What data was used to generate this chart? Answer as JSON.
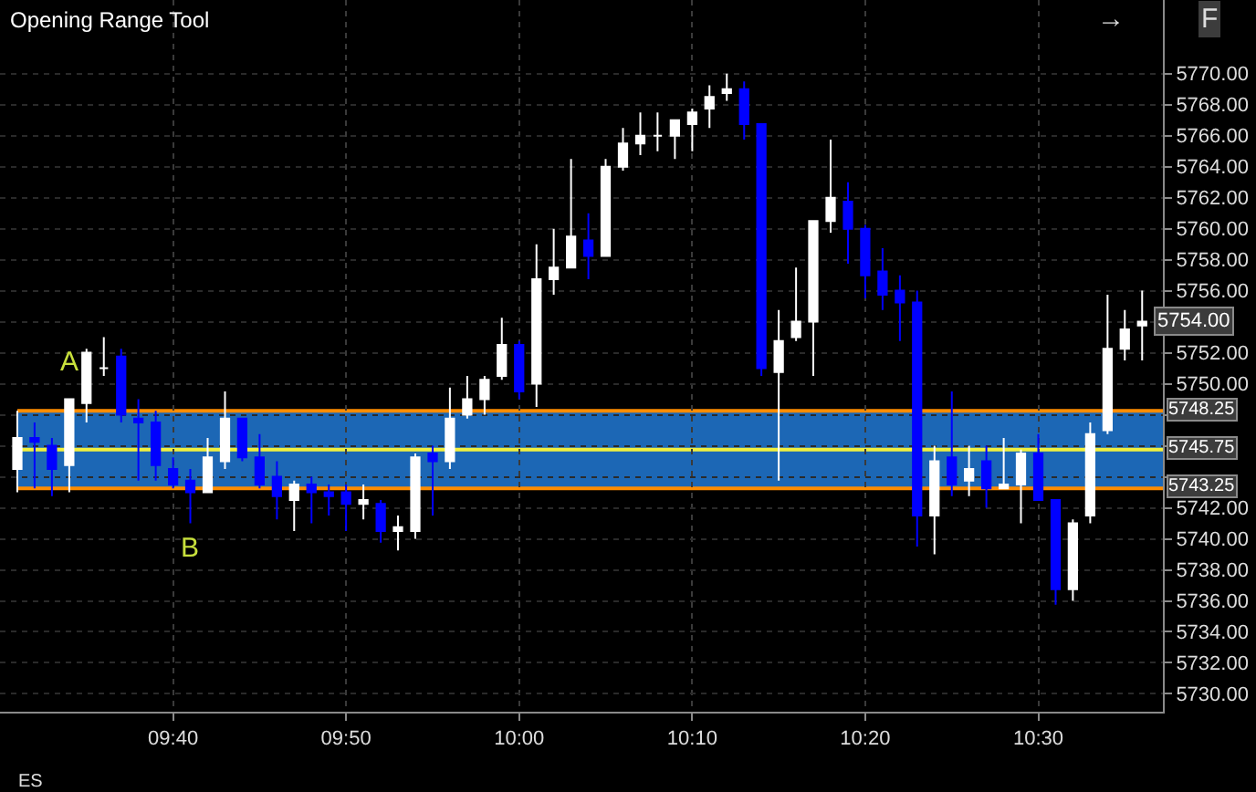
{
  "chart_data": {
    "type": "candlestick",
    "title": "Opening Range Tool",
    "x": [
      9.5167,
      9.5333,
      9.55,
      9.5667,
      9.5833,
      9.6,
      9.6167,
      9.6333,
      9.65,
      9.6667,
      9.6833,
      9.7,
      9.7167,
      9.7333,
      9.75,
      9.7667,
      9.7833,
      9.8,
      9.8167,
      9.8333,
      9.85,
      9.8667,
      9.8833,
      9.9,
      9.9167,
      9.9333,
      9.95,
      9.9667,
      9.9833,
      10,
      10.0167,
      10.0333,
      10.05,
      10.0667,
      10.0833,
      10.1,
      10.1167,
      10.1333,
      10.15,
      10.1667,
      10.1833,
      10.2,
      10.2167,
      10.2333,
      10.25,
      10.2667,
      10.2833,
      10.3,
      10.3167,
      10.3333,
      10.35,
      10.3667,
      10.3833,
      10.4,
      10.4167,
      10.4333,
      10.45,
      10.4667,
      10.4833,
      10.5,
      10.5167,
      10.5333,
      10.55,
      10.5667,
      10.5833,
      10.6
    ],
    "ohlc": [
      [
        5744.5,
        5748.25,
        5743.0,
        5746.5
      ],
      [
        5746.5,
        5747.5,
        5743.25,
        5746.25
      ],
      [
        5746.0,
        5746.5,
        5742.75,
        5744.5
      ],
      [
        5744.75,
        5749.0,
        5743.0,
        5749.0
      ],
      [
        5748.75,
        5752.25,
        5747.5,
        5752.0
      ],
      [
        5751.0,
        5753.0,
        5750.5,
        5751.0
      ],
      [
        5751.75,
        5752.25,
        5747.5,
        5748.0
      ],
      [
        5747.75,
        5749.0,
        5743.75,
        5747.5
      ],
      [
        5747.5,
        5748.25,
        5743.75,
        5744.75
      ],
      [
        5744.5,
        5745.25,
        5743.25,
        5743.5
      ],
      [
        5743.75,
        5744.5,
        5741.0,
        5743.0
      ],
      [
        5743.0,
        5746.5,
        5743.0,
        5745.25
      ],
      [
        5745.0,
        5749.5,
        5744.5,
        5747.75
      ],
      [
        5747.75,
        5747.75,
        5745.0,
        5745.25
      ],
      [
        5745.25,
        5746.75,
        5743.25,
        5743.5
      ],
      [
        5744.0,
        5745.0,
        5741.25,
        5742.75
      ],
      [
        5742.5,
        5743.75,
        5740.5,
        5743.5
      ],
      [
        5743.5,
        5744.0,
        5741.0,
        5743.0
      ],
      [
        5743.0,
        5743.5,
        5741.5,
        5742.75
      ],
      [
        5743.0,
        5743.5,
        5740.5,
        5742.25
      ],
      [
        5742.25,
        5743.5,
        5741.25,
        5742.5
      ],
      [
        5742.25,
        5742.5,
        5739.75,
        5740.5
      ],
      [
        5740.5,
        5741.5,
        5739.25,
        5740.75
      ],
      [
        5740.5,
        5745.5,
        5740.0,
        5745.25
      ],
      [
        5745.5,
        5746.0,
        5741.5,
        5745.0
      ],
      [
        5745.0,
        5749.75,
        5744.5,
        5747.75
      ],
      [
        5748.0,
        5750.5,
        5747.75,
        5749.0
      ],
      [
        5749.0,
        5750.5,
        5748.0,
        5750.25
      ],
      [
        5750.5,
        5754.25,
        5750.25,
        5752.5
      ],
      [
        5752.5,
        5752.75,
        5749.0,
        5749.5
      ],
      [
        5750.0,
        5759.0,
        5748.5,
        5756.75
      ],
      [
        5756.75,
        5760.0,
        5755.75,
        5757.5
      ],
      [
        5757.5,
        5764.5,
        5757.5,
        5759.5
      ],
      [
        5759.25,
        5761.0,
        5756.75,
        5758.25
      ],
      [
        5758.25,
        5764.5,
        5758.25,
        5764.0
      ],
      [
        5764.0,
        5766.5,
        5763.75,
        5765.5
      ],
      [
        5765.5,
        5767.5,
        5764.75,
        5766.0
      ],
      [
        5766.0,
        5767.5,
        5765.0,
        5766.0
      ],
      [
        5766.0,
        5767.0,
        5764.5,
        5767.0
      ],
      [
        5766.75,
        5767.75,
        5765.0,
        5767.5
      ],
      [
        5767.75,
        5769.25,
        5766.5,
        5768.5
      ],
      [
        5768.75,
        5770.0,
        5768.25,
        5769.0
      ],
      [
        5769.0,
        5769.5,
        5765.75,
        5766.75
      ],
      [
        5766.75,
        5766.75,
        5750.5,
        5751.0
      ],
      [
        5750.75,
        5754.75,
        5743.75,
        5752.75
      ],
      [
        5753.0,
        5757.5,
        5752.75,
        5754.0
      ],
      [
        5754.0,
        5760.5,
        5750.5,
        5760.5
      ],
      [
        5760.5,
        5765.75,
        5759.75,
        5762.0
      ],
      [
        5761.75,
        5763.0,
        5757.75,
        5760.0
      ],
      [
        5760.0,
        5760.25,
        5755.5,
        5757.0
      ],
      [
        5757.25,
        5758.75,
        5754.75,
        5755.75
      ],
      [
        5756.0,
        5757.0,
        5752.75,
        5755.25
      ],
      [
        5755.25,
        5756.0,
        5739.5,
        5741.5
      ],
      [
        5741.5,
        5746.0,
        5739.0,
        5745.0
      ],
      [
        5745.25,
        5749.5,
        5742.75,
        5743.5
      ],
      [
        5743.75,
        5746.0,
        5742.75,
        5744.5
      ],
      [
        5745.0,
        5746.0,
        5742.0,
        5743.25
      ],
      [
        5743.25,
        5746.5,
        5743.25,
        5743.5
      ],
      [
        5743.5,
        5745.75,
        5741.0,
        5745.5
      ],
      [
        5745.5,
        5746.75,
        5742.5,
        5742.5
      ],
      [
        5742.5,
        5742.5,
        5735.75,
        5736.75
      ],
      [
        5736.75,
        5741.25,
        5736.0,
        5741.0
      ],
      [
        5741.5,
        5747.5,
        5741.0,
        5746.75
      ],
      [
        5747.0,
        5755.75,
        5746.75,
        5752.25
      ],
      [
        5752.25,
        5754.75,
        5751.5,
        5753.5
      ],
      [
        5753.75,
        5756.0,
        5751.5,
        5754.0
      ]
    ],
    "colors": [
      "#ffffff",
      "#0000ff",
      "#0000ff",
      "#ffffff",
      "#ffffff",
      "#ffffff",
      "#0000ff",
      "#0000ff",
      "#0000ff",
      "#0000ff",
      "#0000ff",
      "#ffffff",
      "#ffffff",
      "#0000ff",
      "#0000ff",
      "#0000ff",
      "#ffffff",
      "#0000ff",
      "#0000ff",
      "#0000ff",
      "#ffffff",
      "#0000ff",
      "#ffffff",
      "#ffffff",
      "#0000ff",
      "#ffffff",
      "#ffffff",
      "#ffffff",
      "#ffffff",
      "#0000ff",
      "#ffffff",
      "#ffffff",
      "#ffffff",
      "#0000ff",
      "#ffffff",
      "#ffffff",
      "#ffffff",
      "#ffffff",
      "#ffffff",
      "#ffffff",
      "#ffffff",
      "#ffffff",
      "#0000ff",
      "#0000ff",
      "#ffffff",
      "#ffffff",
      "#ffffff",
      "#ffffff",
      "#0000ff",
      "#0000ff",
      "#0000ff",
      "#0000ff",
      "#0000ff",
      "#ffffff",
      "#0000ff",
      "#ffffff",
      "#0000ff",
      "#ffffff",
      "#ffffff",
      "#0000ff",
      "#0000ff",
      "#ffffff",
      "#ffffff",
      "#ffffff",
      "#ffffff",
      "#ffffff"
    ],
    "xlim": [
      9.5,
      10.62
    ],
    "xticks": [
      {
        "value": 9.6667,
        "label": "09:40"
      },
      {
        "value": 9.8333,
        "label": "09:50"
      },
      {
        "value": 10,
        "label": "10:00"
      },
      {
        "value": 10.1667,
        "label": "10:10"
      },
      {
        "value": 10.3333,
        "label": "10:20"
      },
      {
        "value": 10.5,
        "label": "10:30"
      }
    ],
    "ylim": [
      5728.85,
      5774.75
    ],
    "yticks": [
      {
        "value": 5730,
        "label": "5730.00"
      },
      {
        "value": 5732,
        "label": "5732.00"
      },
      {
        "value": 5734,
        "label": "5734.00"
      },
      {
        "value": 5736,
        "label": "5736.00"
      },
      {
        "value": 5738,
        "label": "5738.00"
      },
      {
        "value": 5740,
        "label": "5740.00"
      },
      {
        "value": 5742,
        "label": "5742.00"
      },
      {
        "value": 5744,
        "label": null
      },
      {
        "value": 5746,
        "label": null
      },
      {
        "value": 5748,
        "label": null
      },
      {
        "value": 5750,
        "label": "5750.00"
      },
      {
        "value": 5752,
        "label": "5752.00"
      },
      {
        "value": 5754,
        "label": null
      },
      {
        "value": 5756,
        "label": "5756.00"
      },
      {
        "value": 5758,
        "label": "5758.00"
      },
      {
        "value": 5760,
        "label": "5760.00"
      },
      {
        "value": 5762,
        "label": "5762.00"
      },
      {
        "value": 5764,
        "label": "5764.00"
      },
      {
        "value": 5766,
        "label": "5766.00"
      },
      {
        "value": 5768,
        "label": "5768.00"
      },
      {
        "value": 5770,
        "label": "5770.00"
      }
    ],
    "grid": true,
    "bands": [
      {
        "axis": "y",
        "from": 5743.25,
        "to": 5748.25,
        "color": "#1c67b5"
      }
    ],
    "ref_lines": [
      {
        "axis": "y",
        "value": 5748.25,
        "label": "5748.25",
        "color": "#ff8c00"
      },
      {
        "axis": "y",
        "value": 5745.75,
        "label": "5745.75",
        "color": "#f0f040"
      },
      {
        "axis": "y",
        "value": 5743.25,
        "label": "5743.25",
        "color": "#ff8c00"
      }
    ],
    "annotations": [
      "A",
      "B",
      {
        "text": "5754.00",
        "x": 10.6,
        "y": 5754
      },
      "ES",
      "→",
      "F"
    ]
  }
}
